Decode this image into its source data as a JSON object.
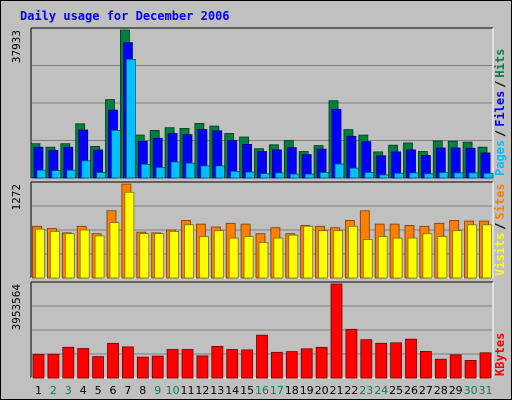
{
  "chart_data": {
    "type": "bar",
    "title": "Daily usage for December 2006",
    "categories": [
      "1",
      "2",
      "3",
      "4",
      "5",
      "6",
      "7",
      "8",
      "9",
      "10",
      "11",
      "12",
      "13",
      "14",
      "15",
      "16",
      "17",
      "18",
      "19",
      "20",
      "21",
      "22",
      "23",
      "24",
      "25",
      "26",
      "27",
      "28",
      "29",
      "30",
      "31"
    ],
    "weekend_days": [
      "2",
      "3",
      "9",
      "10",
      "16",
      "17",
      "23",
      "24",
      "30",
      "31"
    ],
    "panels": [
      {
        "id": "hits",
        "scale_max_label": "37933",
        "ylim": [
          0,
          37933
        ],
        "series": [
          {
            "name": "Hits",
            "color": "#008040",
            "values": [
              8800,
              7900,
              8800,
              13900,
              8100,
              20100,
              37933,
              11000,
              12200,
              12900,
              12700,
              14000,
              13300,
              11400,
              10500,
              7500,
              8500,
              9600,
              6800,
              8300,
              19800,
              12400,
              11000,
              6700,
              8400,
              9000,
              6800,
              9500,
              9400,
              9200,
              7900
            ]
          },
          {
            "name": "Files",
            "color": "#0000ff",
            "values": [
              7900,
              7100,
              7900,
              12300,
              7200,
              17400,
              34700,
              9400,
              10200,
              11400,
              11100,
              12400,
              12100,
              9600,
              8600,
              6800,
              7200,
              7800,
              6000,
              7400,
              17600,
              10700,
              9300,
              5700,
              6700,
              7200,
              5800,
              7700,
              7700,
              7600,
              6400
            ]
          },
          {
            "name": "Pages",
            "color": "#00c0ff",
            "values": [
              2000,
              1900,
              2000,
              4400,
              1400,
              12200,
              30400,
              3500,
              2700,
              4100,
              3800,
              3100,
              3100,
              1700,
              1500,
              1100,
              1300,
              1000,
              1000,
              1400,
              3600,
              2500,
              1400,
              800,
              1200,
              1300,
              1100,
              1400,
              1300,
              1300,
              1200
            ]
          }
        ]
      },
      {
        "id": "visits",
        "scale_max_label": "1272",
        "ylim": [
          0,
          1272
        ],
        "series": [
          {
            "name": "Sites",
            "color": "#ff8000",
            "values": [
              700,
              670,
              610,
              700,
              600,
              910,
              1270,
              620,
              610,
              650,
              780,
              730,
              690,
              740,
              730,
              600,
              680,
              600,
              710,
              700,
              680,
              780,
              910,
              730,
              730,
              710,
              700,
              740,
              780,
              770,
              770
            ]
          },
          {
            "name": "Visits",
            "color": "#ffff00",
            "values": [
              660,
              630,
              600,
              650,
              570,
              750,
              1160,
              600,
              600,
              630,
              720,
              560,
              640,
              540,
              560,
              480,
              540,
              580,
              700,
              640,
              640,
              700,
              520,
              560,
              540,
              540,
              600,
              560,
              640,
              720,
              720
            ]
          }
        ]
      },
      {
        "id": "kbytes",
        "scale_max_label": "3953564",
        "ylim": [
          0,
          3953564
        ],
        "series": [
          {
            "name": "KBytes",
            "color": "#ff0000",
            "values": [
              990000,
              1000000,
              1290000,
              1240000,
              900000,
              1460000,
              1310000,
              880000,
              920000,
              1200000,
              1200000,
              930000,
              1330000,
              1200000,
              1180000,
              1800000,
              1080000,
              1110000,
              1230000,
              1290000,
              3953564,
              2050000,
              1610000,
              1460000,
              1480000,
              1630000,
              1120000,
              790000,
              970000,
              740000,
              1060000
            ]
          }
        ]
      }
    ],
    "colors": {
      "background": "#c0c0c0",
      "title": "#0000ff",
      "label_dark": "#000000",
      "weekend_label": "#00805c",
      "grid": "#808080"
    }
  }
}
